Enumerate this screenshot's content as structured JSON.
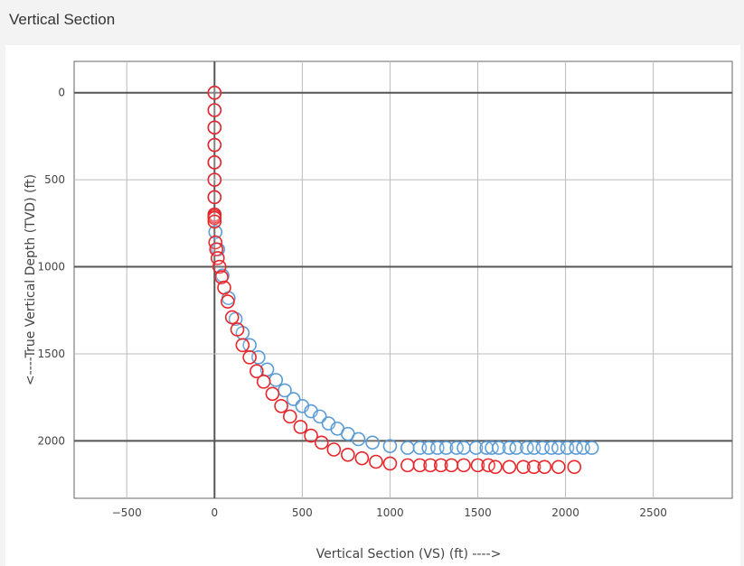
{
  "panel": {
    "title": "Vertical Section"
  },
  "chart_data": {
    "type": "scatter",
    "title": "",
    "xlabel": "Vertical Section (VS) (ft) ---->",
    "ylabel": "<----True Vertical Depth (TVD) (ft)",
    "xlim": [
      -800,
      2950
    ],
    "ylim": [
      2330,
      -180
    ],
    "y_inverted": true,
    "grid": true,
    "xticks": [
      -500,
      0,
      500,
      1000,
      1500,
      2000,
      2500
    ],
    "xtick_labels": [
      "−500",
      "0",
      "500",
      "1000",
      "1500",
      "2000",
      "2500"
    ],
    "yticks": [
      0,
      500,
      1000,
      1500,
      2000
    ],
    "ytick_labels": [
      "0",
      "500",
      "1000",
      "1500",
      "2000"
    ],
    "marker": "open-circle",
    "series": [
      {
        "color": "#5b9bd5",
        "x": [
          0,
          0,
          0,
          0,
          0,
          0,
          0,
          0,
          5,
          20,
          45,
          80,
          120,
          160,
          200,
          250,
          300,
          350,
          400,
          450,
          500,
          550,
          600,
          650,
          700,
          760,
          820,
          900,
          1000,
          1100,
          1170,
          1220,
          1270,
          1320,
          1380,
          1420,
          1490,
          1550,
          1580,
          1620,
          1680,
          1720,
          1780,
          1820,
          1870,
          1920,
          1960,
          2010,
          2060,
          2100,
          2150
        ],
        "y": [
          0,
          100,
          200,
          300,
          400,
          500,
          600,
          700,
          800,
          900,
          1050,
          1180,
          1300,
          1380,
          1450,
          1520,
          1590,
          1650,
          1710,
          1760,
          1800,
          1830,
          1860,
          1900,
          1930,
          1960,
          1990,
          2010,
          2030,
          2040,
          2040,
          2040,
          2040,
          2040,
          2040,
          2040,
          2040,
          2040,
          2040,
          2040,
          2040,
          2040,
          2040,
          2040,
          2040,
          2040,
          2040,
          2040,
          2040,
          2040,
          2040
        ]
      },
      {
        "color": "#e8262a",
        "x": [
          0,
          0,
          0,
          0,
          0,
          0,
          0,
          0,
          0,
          0,
          0,
          5,
          10,
          18,
          28,
          40,
          55,
          75,
          100,
          130,
          160,
          200,
          240,
          280,
          330,
          380,
          430,
          490,
          550,
          610,
          680,
          760,
          840,
          920,
          1000,
          1100,
          1170,
          1230,
          1290,
          1350,
          1420,
          1500,
          1560,
          1600,
          1680,
          1760,
          1820,
          1880,
          1960,
          2050
        ],
        "y": [
          0,
          100,
          200,
          300,
          400,
          500,
          600,
          700,
          710,
          720,
          740,
          860,
          900,
          950,
          1000,
          1060,
          1120,
          1200,
          1290,
          1360,
          1450,
          1520,
          1600,
          1660,
          1730,
          1800,
          1860,
          1920,
          1970,
          2010,
          2050,
          2080,
          2100,
          2120,
          2130,
          2140,
          2140,
          2140,
          2140,
          2140,
          2140,
          2140,
          2140,
          2150,
          2150,
          2150,
          2150,
          2150,
          2150,
          2150
        ]
      }
    ]
  }
}
